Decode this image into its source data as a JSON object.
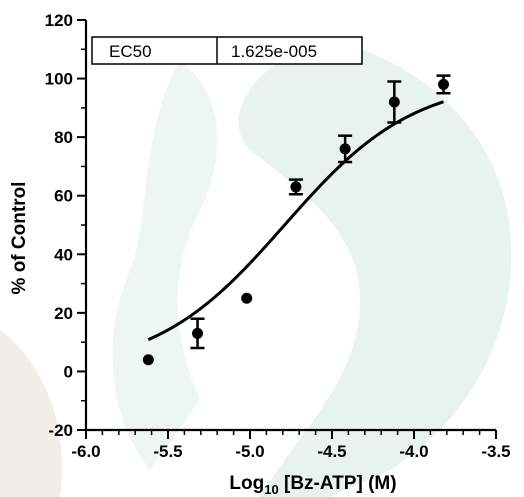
{
  "chart_data": {
    "type": "scatter",
    "title": "",
    "xlabel_main": "Log",
    "xlabel_sub": "10",
    "xlabel_rest": " [Bz-ATP] (M)",
    "ylabel": "% of Control",
    "xlim": [
      -6.0,
      -3.5
    ],
    "ylim": [
      -20,
      120
    ],
    "x_ticks": [
      -6.0,
      -5.5,
      -5.0,
      -4.5,
      -4.0,
      -3.5
    ],
    "x_tick_labels": [
      "-6.0",
      "-5.5",
      "-5.0",
      "-4.5",
      "-4.0",
      "-3.5"
    ],
    "y_ticks": [
      -20,
      0,
      20,
      40,
      60,
      80,
      100,
      120
    ],
    "y_tick_labels": [
      "-20",
      "0",
      "20",
      "40",
      "60",
      "80",
      "100",
      "120"
    ],
    "points": [
      {
        "x": -5.62,
        "y": 4,
        "err": 0
      },
      {
        "x": -5.32,
        "y": 13,
        "err": 5
      },
      {
        "x": -5.02,
        "y": 25,
        "err": 0
      },
      {
        "x": -4.72,
        "y": 63,
        "err": 2.5
      },
      {
        "x": -4.42,
        "y": 76,
        "err": 4.5
      },
      {
        "x": -4.12,
        "y": 92,
        "err": 7
      },
      {
        "x": -3.82,
        "y": 98,
        "err": 3
      }
    ],
    "fit": {
      "model": "sigmoidal dose-response",
      "log_ec50": -4.789,
      "bottom": 0,
      "top": 100,
      "hill": 1.1,
      "x_range": [
        -5.62,
        -3.82
      ]
    },
    "legend_table": {
      "label": "EC50",
      "value": "1.625e-005"
    }
  },
  "colors": {
    "ink": "#000000",
    "watermark": "#e6f1ec"
  }
}
